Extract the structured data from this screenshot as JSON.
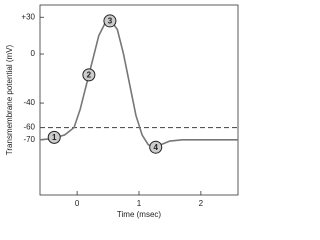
{
  "chart_data": {
    "type": "line",
    "x_label": "Time (msec)",
    "y_label": "Transmembrane potential (mV)",
    "x": [
      -0.6,
      -0.4,
      -0.2,
      -0.05,
      0.05,
      0.15,
      0.25,
      0.35,
      0.45,
      0.55,
      0.65,
      0.75,
      0.85,
      0.95,
      1.05,
      1.15,
      1.25,
      1.35,
      1.5,
      1.7,
      2.0,
      2.6
    ],
    "values": [
      -70,
      -69,
      -66,
      -60,
      -45,
      -25,
      -5,
      15,
      25,
      27,
      20,
      0,
      -25,
      -50,
      -66,
      -74,
      -76,
      -74,
      -71,
      -70,
      -70,
      -70
    ],
    "color": "#777777",
    "xlim": [
      -0.6,
      2.6
    ],
    "xticks": [
      0,
      1,
      2
    ],
    "ylim": [
      -115,
      40
    ],
    "yticks": [
      {
        "value": 30,
        "label": "+30"
      },
      0,
      -40,
      -60,
      -70
    ],
    "reference_line": {
      "value": -60,
      "style": "dashed",
      "color": "#555555"
    },
    "markers": [
      {
        "label": "1",
        "x": -0.37,
        "y": -68
      },
      {
        "label": "2",
        "x": 0.19,
        "y": -17
      },
      {
        "label": "3",
        "x": 0.53,
        "y": 27
      },
      {
        "label": "4",
        "x": 1.27,
        "y": -76
      }
    ]
  }
}
